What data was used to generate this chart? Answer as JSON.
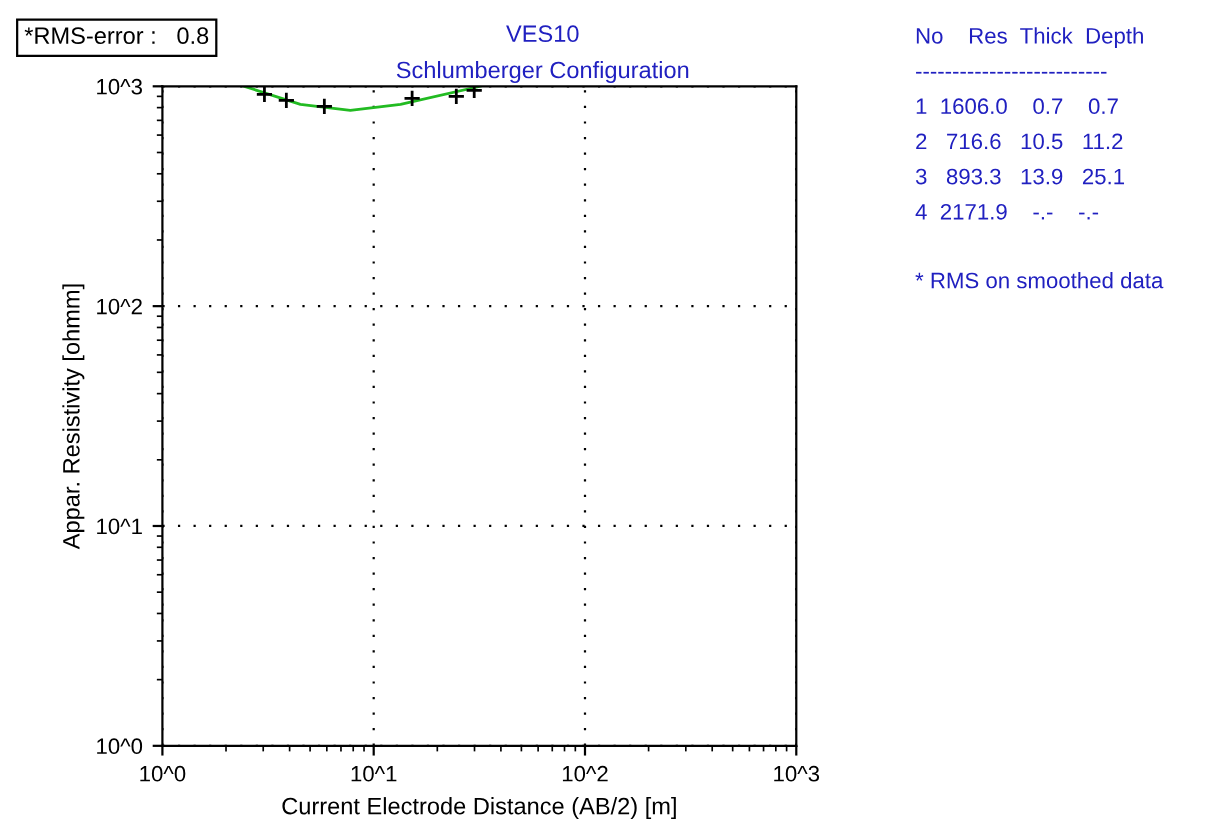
{
  "chart_data": {
    "type": "line",
    "title": "VES10",
    "subtitle": "Schlumberger Configuration",
    "xlabel": "Current Electrode Distance (AB/2) [m]",
    "ylabel": "Appar. Resistivity [ohmm]",
    "log": "xy",
    "grid": true,
    "legend": false,
    "xlim": [
      1,
      1000
    ],
    "ylim": [
      1,
      1000
    ],
    "xticks": [
      {
        "value": 1,
        "label": "10^0"
      },
      {
        "value": 10,
        "label": "10^1"
      },
      {
        "value": 100,
        "label": "10^2"
      },
      {
        "value": 1000,
        "label": "10^3"
      }
    ],
    "yticks": [
      {
        "value": 1,
        "label": "10^0"
      },
      {
        "value": 10,
        "label": "10^1"
      },
      {
        "value": 100,
        "label": "10^2"
      },
      {
        "value": 1000,
        "label": "10^3"
      }
    ],
    "series": [
      {
        "color": "#22bb22",
        "marker": "none",
        "x": [
          2.44,
          4.5,
          7.75,
          13.4,
          31.9
        ],
        "values": [
          1000,
          828,
          778,
          828,
          1000
        ]
      },
      {
        "type": "scatter",
        "color": "#000000",
        "marker": "cross",
        "x": [
          3.04,
          3.86,
          5.84,
          15.2,
          24.6,
          29.9
        ],
        "values": [
          920,
          863,
          811,
          882,
          900,
          958
        ]
      }
    ],
    "annotations": [
      "*RMS-error :   0.8",
      "No    Res  Thick  Depth",
      "--------------------------",
      "1  1606.0    0.7    0.7",
      "2   716.6   10.5   11.2",
      "3   893.3   13.9   25.1",
      "4  2171.9    -.-    -.-",
      "* RMS on smoothed data"
    ]
  }
}
